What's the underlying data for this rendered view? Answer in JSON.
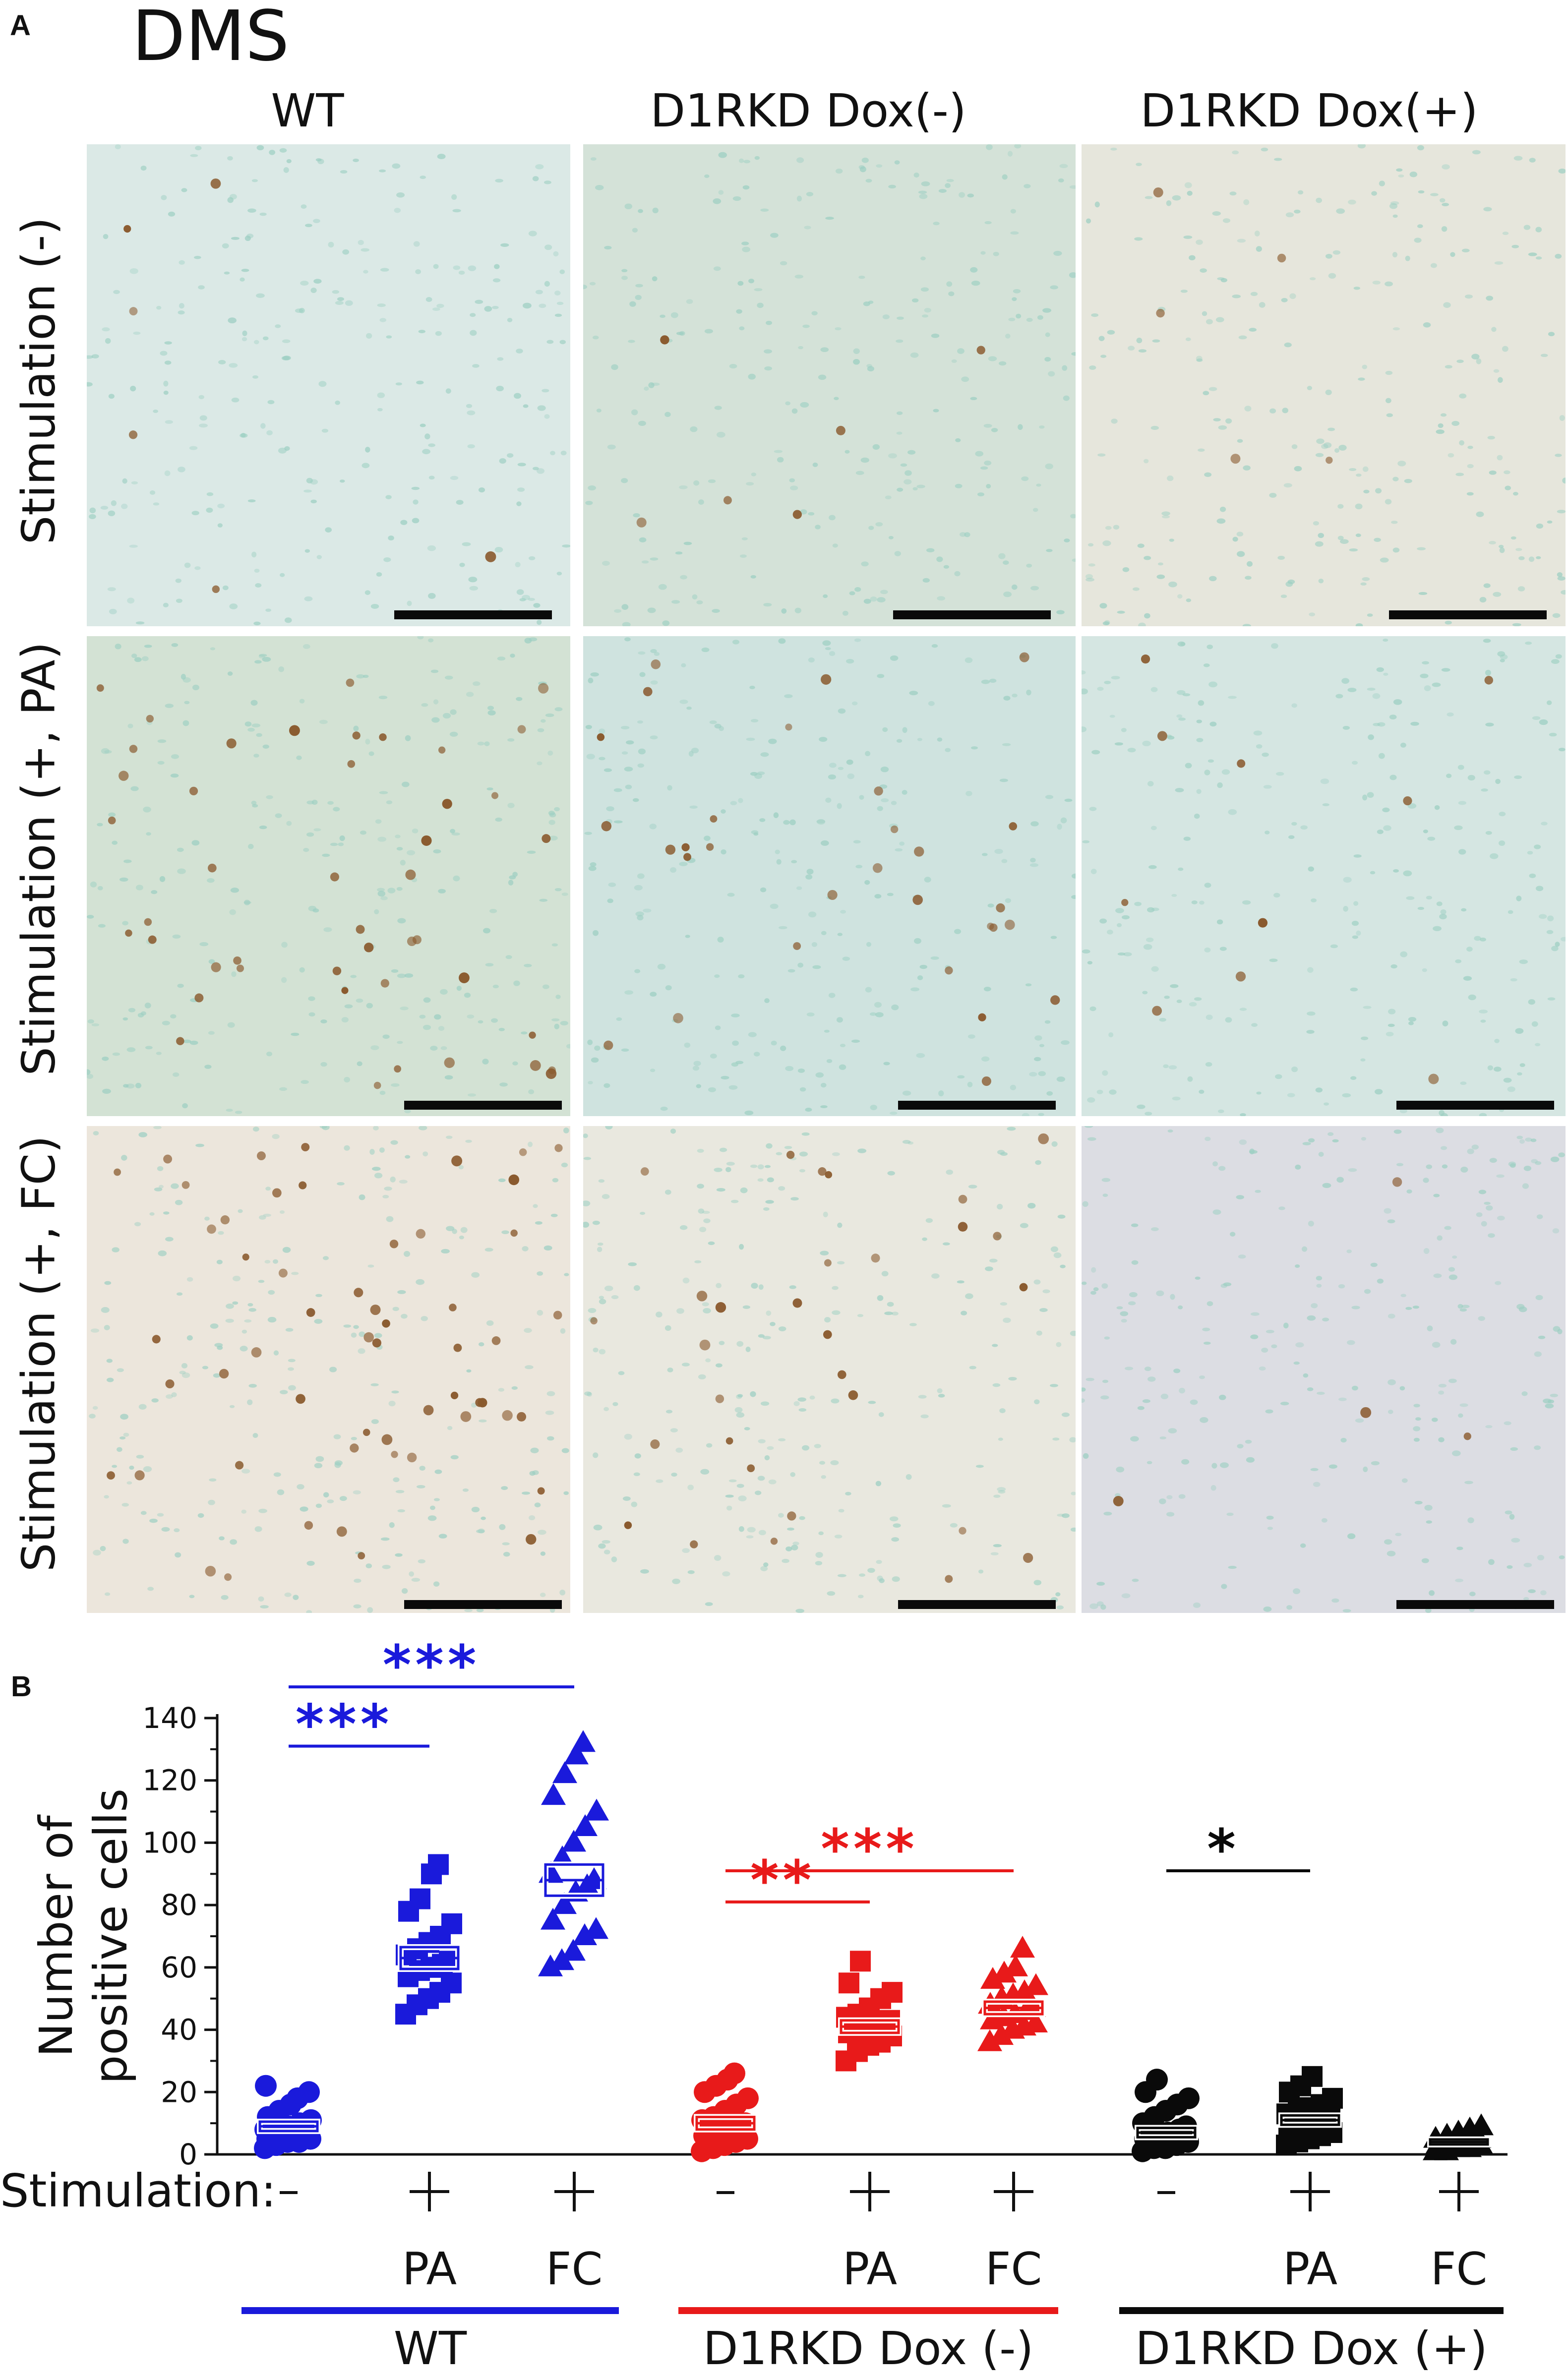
{
  "panel_a": {
    "letter": "A",
    "region": "DMS",
    "columns": [
      "WT",
      "D1RKD Dox(-)",
      "D1RKD Dox(+)"
    ],
    "rows": [
      "Stimulation (-)",
      "Stimulation (+, PA)",
      "Stimulation (+, FC)"
    ],
    "tile_backgrounds": [
      [
        "#dbe9e6",
        "#d4e2d8",
        "#e6e6dc"
      ],
      [
        "#d3e2d4",
        "#cfe3df",
        "#d5e6e2"
      ],
      [
        "#ece6dc",
        "#e9e8df",
        "#dcdde3"
      ]
    ],
    "cell_color": "#9ccfc2",
    "positive_color": "#8a5a2e",
    "positive_counts_shown": [
      [
        6,
        6,
        5
      ],
      [
        45,
        30,
        10
      ],
      [
        55,
        30,
        4
      ]
    ]
  },
  "panel_b": {
    "letter": "B",
    "chart_data": {
      "type": "scatter",
      "ylabel": "Number of\npositive cells",
      "ylim": [
        0,
        140
      ],
      "yticks": [
        0,
        20,
        40,
        60,
        80,
        100,
        120,
        140
      ],
      "stimulation_label": "Stimulation:",
      "groups": [
        {
          "name": "WT",
          "color": "#1a1adb",
          "conditions": [
            {
              "stim": "-",
              "sub": "",
              "marker": "circle",
              "mean": 9,
              "sem": 1.5,
              "values": [
                2,
                3,
                4,
                4,
                5,
                5,
                6,
                6,
                7,
                7,
                8,
                8,
                9,
                10,
                11,
                12,
                14,
                16,
                18,
                20,
                22
              ]
            },
            {
              "stim": "+",
              "sub": "PA",
              "marker": "square",
              "mean": 63,
              "sem": 3.5,
              "values": [
                45,
                48,
                50,
                52,
                55,
                57,
                59,
                60,
                61,
                62,
                64,
                66,
                68,
                70,
                74,
                78,
                82,
                90,
                93
              ]
            },
            {
              "stim": "+",
              "sub": "FC",
              "marker": "triangle",
              "mean": 88,
              "sem": 5,
              "values": [
                60,
                62,
                65,
                70,
                72,
                75,
                80,
                84,
                86,
                88,
                90,
                95,
                100,
                105,
                110,
                115,
                122,
                128,
                132
              ]
            }
          ]
        },
        {
          "name": "D1RKD Dox (-)",
          "color": "#e81a1a",
          "conditions": [
            {
              "stim": "-",
              "sub": "",
              "marker": "circle",
              "mean": 10,
              "sem": 2,
              "values": [
                1,
                2,
                3,
                4,
                5,
                6,
                7,
                8,
                9,
                10,
                11,
                12,
                14,
                16,
                18,
                20,
                22,
                24,
                26
              ]
            },
            {
              "stim": "+",
              "sub": "PA",
              "marker": "square",
              "mean": 41,
              "sem": 2,
              "values": [
                30,
                33,
                35,
                36,
                38,
                39,
                40,
                41,
                42,
                43,
                44,
                45,
                47,
                50,
                52,
                55,
                62
              ]
            },
            {
              "stim": "+",
              "sub": "FC",
              "marker": "triangle",
              "mean": 47,
              "sem": 2,
              "values": [
                36,
                38,
                40,
                41,
                42,
                43,
                44,
                45,
                46,
                47,
                48,
                50,
                51,
                52,
                54,
                56,
                58,
                60,
                66
              ]
            }
          ]
        },
        {
          "name": "D1RKD Dox (+)",
          "color": "#0a0a0a",
          "conditions": [
            {
              "stim": "-",
              "sub": "",
              "marker": "circle",
              "mean": 7,
              "sem": 1.5,
              "values": [
                1,
                2,
                2,
                3,
                4,
                5,
                6,
                7,
                8,
                9,
                10,
                12,
                14,
                16,
                18,
                20,
                24
              ]
            },
            {
              "stim": "+",
              "sub": "PA",
              "marker": "square",
              "mean": 11,
              "sem": 1.5,
              "values": [
                3,
                4,
                5,
                6,
                7,
                8,
                9,
                10,
                11,
                12,
                13,
                14,
                15,
                16,
                18,
                20,
                22,
                25
              ]
            },
            {
              "stim": "+",
              "sub": "FC",
              "marker": "triangle",
              "mean": 4,
              "sem": 0.8,
              "values": [
                1,
                1,
                2,
                2,
                3,
                3,
                3,
                4,
                4,
                5,
                5,
                6,
                7,
                8,
                9
              ]
            }
          ]
        }
      ],
      "significance": [
        {
          "label": "***",
          "group": 0,
          "from": 0,
          "to": 1,
          "level": 131,
          "color": "#1a1adb"
        },
        {
          "label": "***",
          "group": 0,
          "from": 0,
          "to": 2,
          "level": 150,
          "color": "#1a1adb"
        },
        {
          "label": "**",
          "group": 1,
          "from": 0,
          "to": 1,
          "level": 81,
          "color": "#e81a1a"
        },
        {
          "label": "***",
          "group": 1,
          "from": 0,
          "to": 2,
          "level": 91,
          "color": "#e81a1a"
        },
        {
          "label": "*",
          "group": 2,
          "from": 0,
          "to": 1,
          "level": 91,
          "color": "#0a0a0a"
        }
      ]
    }
  }
}
